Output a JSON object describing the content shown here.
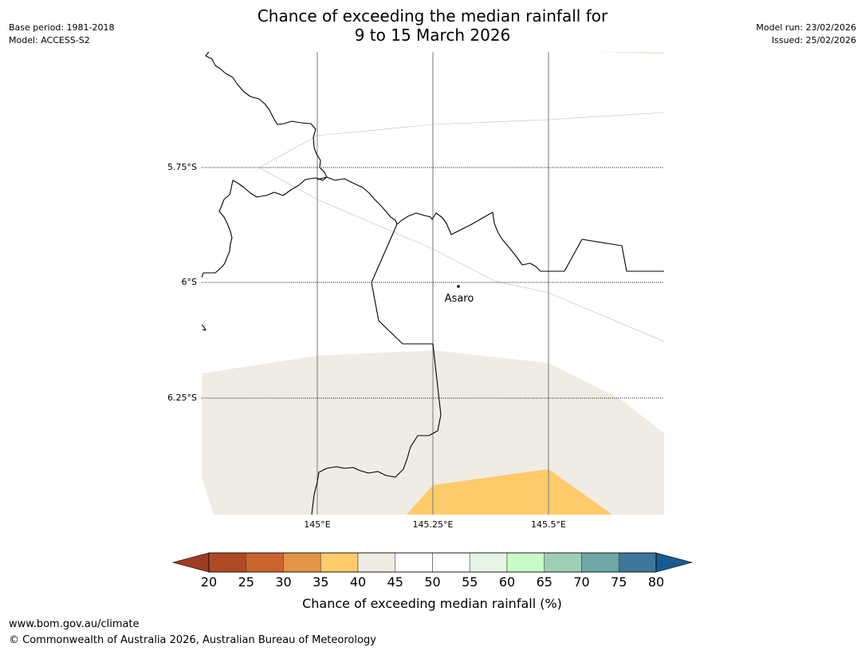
{
  "title": {
    "line1": "Chance of exceeding the median rainfall for",
    "line2": "9 to 15 March 2026"
  },
  "meta": {
    "base_period": "Base period: 1981-2018",
    "model": "Model: ACCESS-S2",
    "model_run": "Model run: 23/02/2026",
    "issued": "Issued: 25/02/2026"
  },
  "map": {
    "place_label": "Asaro",
    "lat_ticks": [
      "5.75°S",
      "6°S",
      "6.25°S"
    ],
    "lon_ticks": [
      "145°E",
      "145.25°E",
      "145.5°E"
    ]
  },
  "colorbar": {
    "label": "Chance of exceeding median rainfall (%)",
    "ticks": [
      "20",
      "25",
      "30",
      "35",
      "40",
      "45",
      "50",
      "55",
      "60",
      "65",
      "70",
      "75",
      "80"
    ],
    "colors": [
      "#9e3b23",
      "#b04a25",
      "#cc6430",
      "#e49445",
      "#fdcb6a",
      "#f0ebe3",
      "#ffffff",
      "#ffffff",
      "#e6f6e6",
      "#c9fbc9",
      "#9ecfb5",
      "#6ea6a5",
      "#3e7799",
      "#175b90"
    ]
  },
  "footer": {
    "url": "www.bom.gov.au/climate",
    "copyright": "© Commonwealth of Australia 2026, Australian Bureau of Meteorology"
  }
}
